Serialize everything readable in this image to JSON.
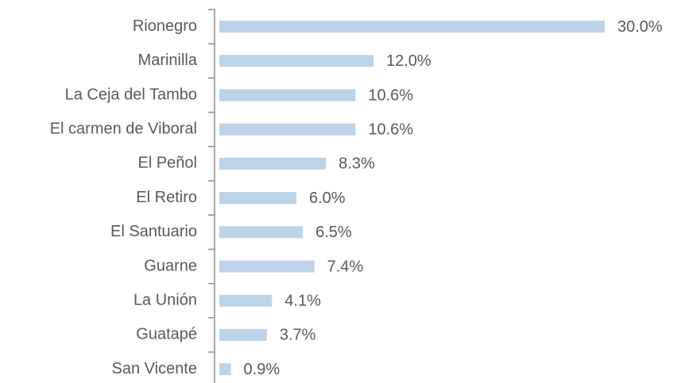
{
  "chart_data": {
    "type": "bar",
    "orientation": "horizontal",
    "categories": [
      "Rionegro",
      "Marinilla",
      "La Ceja del Tambo",
      "El carmen de Viboral",
      "El Peñol",
      "El Retiro",
      "El Santuario",
      "Guarne",
      "La Unión",
      "Guatapé",
      "San Vicente"
    ],
    "values": [
      30.0,
      12.0,
      10.6,
      10.6,
      8.3,
      6.0,
      6.5,
      7.4,
      4.1,
      3.7,
      0.9
    ],
    "value_labels": [
      "30.0%",
      "12.0%",
      "10.6%",
      "10.6%",
      "8.3%",
      "6.0%",
      "6.5%",
      "7.4%",
      "4.1%",
      "3.7%",
      "0.9%"
    ],
    "color": "#bcd3e8"
  }
}
